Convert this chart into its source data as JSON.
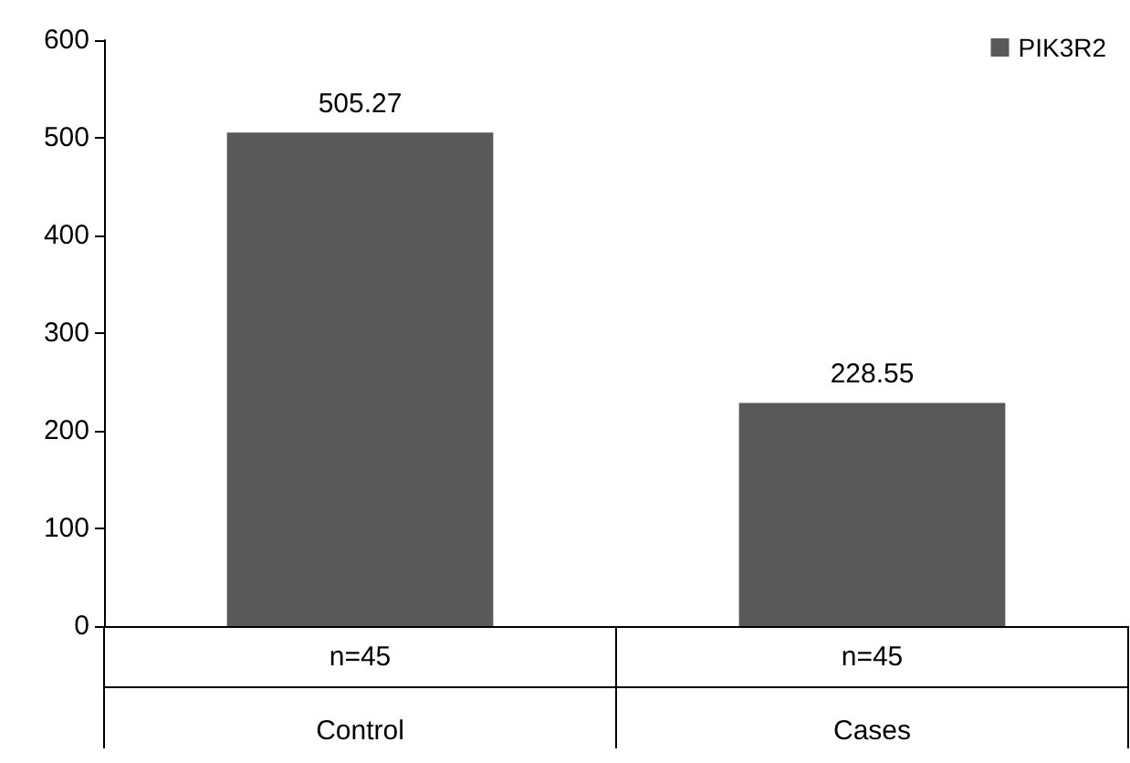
{
  "chart_data": {
    "type": "bar",
    "categories": [
      "Control",
      "Cases"
    ],
    "series": [
      {
        "name": "PIK3R2",
        "color": "#595959",
        "values": [
          505.27,
          228.55
        ]
      }
    ],
    "ylim": [
      0,
      600
    ],
    "yticks": [
      0,
      100,
      200,
      300,
      400,
      500,
      600
    ],
    "grid": false,
    "legend": "top right",
    "data_labels": true,
    "annotations": [
      "n=45",
      "n=45"
    ]
  }
}
